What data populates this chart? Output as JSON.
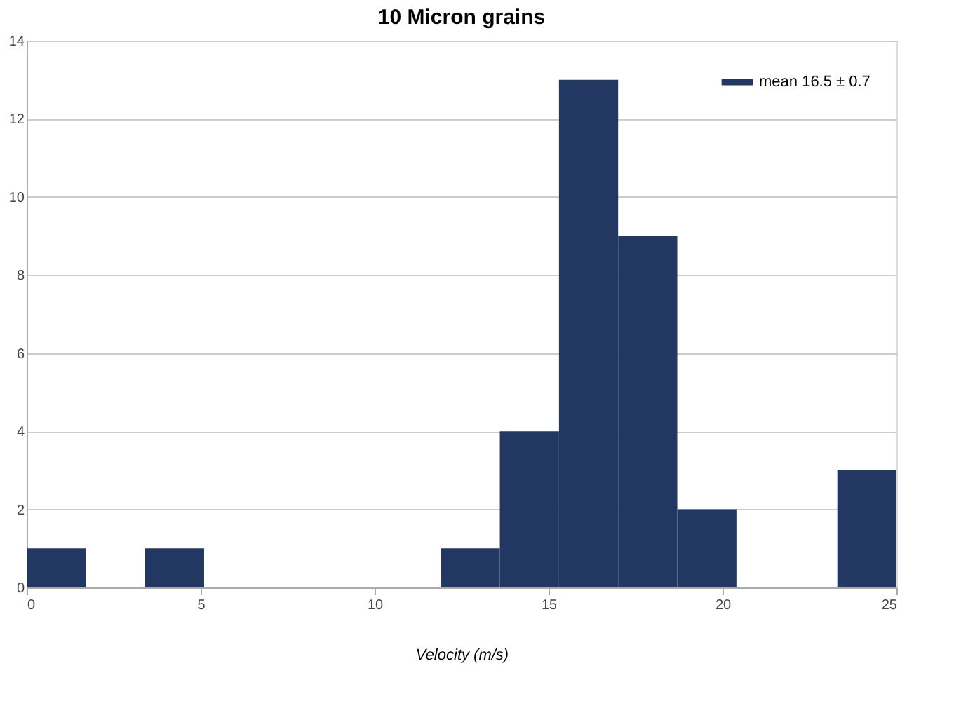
{
  "chart_data": {
    "type": "histogram",
    "title": "10 Micron grains",
    "xlabel": "Velocity (m/s)",
    "bins": [
      0,
      1.7,
      3.4,
      5.1,
      11.9,
      13.6,
      15.3,
      17,
      18.7,
      20.4,
      23.3,
      25
    ],
    "series": [
      {
        "name": "mean 16.5 ± 0.7",
        "color": "#223862",
        "values": [
          1,
          0,
          1,
          0,
          1,
          4,
          13,
          9,
          2,
          0,
          3
        ]
      }
    ],
    "xlim": [
      0,
      25
    ],
    "xticks": [
      0,
      5,
      10,
      15,
      20,
      25
    ],
    "ylim": [
      0,
      14
    ],
    "yticks": [
      0,
      2,
      4,
      6,
      8,
      10,
      12,
      14
    ],
    "grid": "y",
    "legend": "top right"
  }
}
